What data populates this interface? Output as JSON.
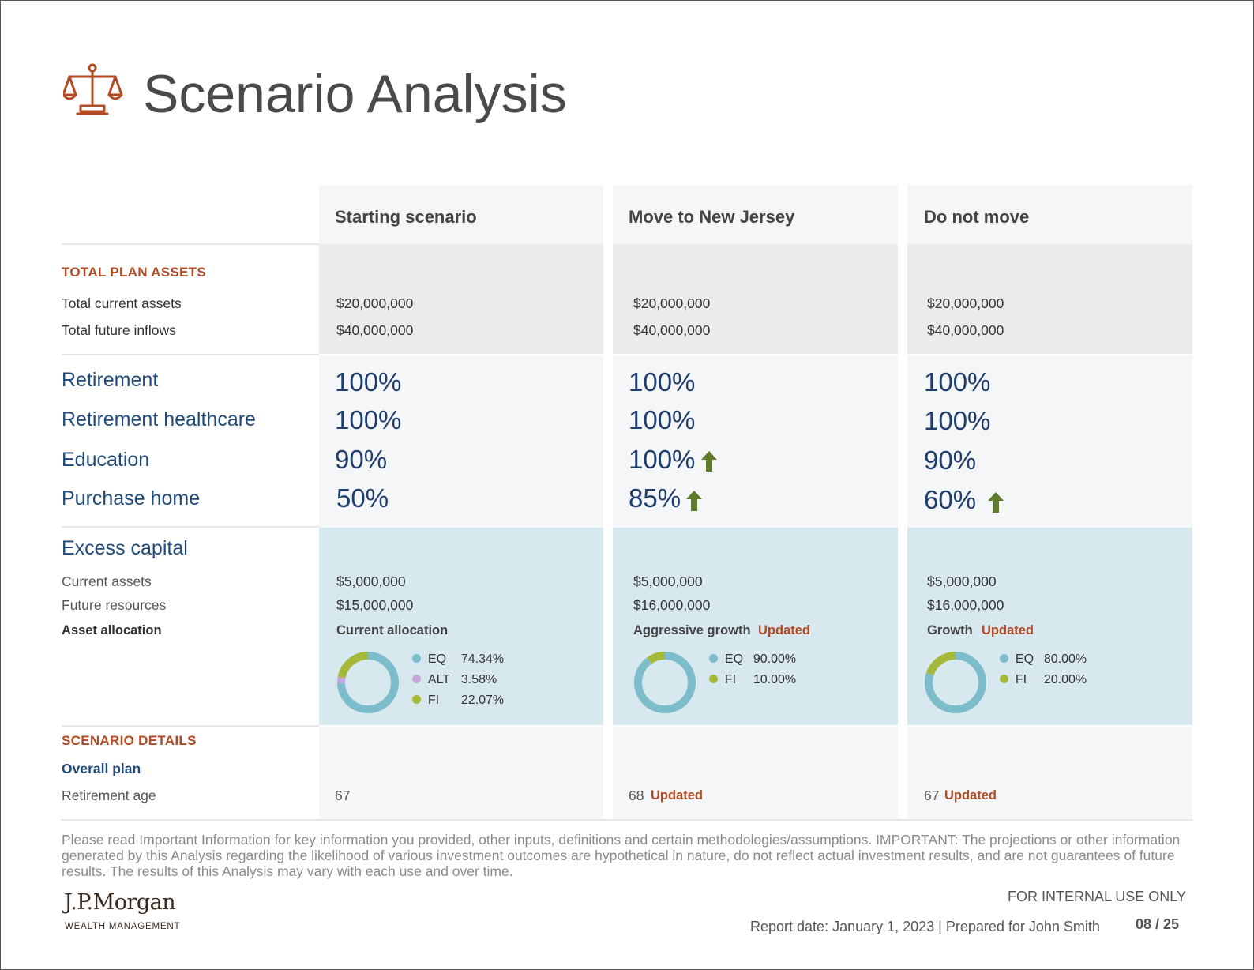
{
  "title": "Scenario Analysis",
  "columns": [
    {
      "title": "Starting scenario"
    },
    {
      "title": "Move to New Jersey"
    },
    {
      "title": "Do not move"
    }
  ],
  "plan_assets": {
    "section": "TOTAL PLAN ASSETS",
    "rows": [
      "Total current assets",
      "Total future inflows"
    ],
    "values": [
      [
        "$20,000,000",
        "$40,000,000"
      ],
      [
        "$20,000,000",
        "$40,000,000"
      ],
      [
        "$20,000,000",
        "$40,000,000"
      ]
    ]
  },
  "goals": {
    "rows": [
      "Retirement",
      "Retirement healthcare",
      "Education",
      "Purchase home"
    ],
    "values": [
      [
        "100%",
        "100%",
        "90%",
        "50%"
      ],
      [
        "100%",
        "100%",
        "100%",
        "85%"
      ],
      [
        "100%",
        "100%",
        "90%",
        "60%"
      ]
    ],
    "improved": [
      [
        false,
        false,
        false,
        false
      ],
      [
        false,
        false,
        true,
        true
      ],
      [
        false,
        false,
        false,
        true
      ]
    ]
  },
  "excess_capital": {
    "section": "Excess capital",
    "rows": [
      "Current assets",
      "Future resources",
      "Asset allocation"
    ],
    "values": [
      [
        "$5,000,000",
        "$15,000,000"
      ],
      [
        "$5,000,000",
        "$16,000,000"
      ],
      [
        "$5,000,000",
        "$16,000,000"
      ]
    ],
    "allocation_names": [
      "Current allocation",
      "Aggressive growth",
      "Growth"
    ],
    "allocation_updated": [
      "",
      "Updated",
      "Updated"
    ],
    "allocations": [
      [
        {
          "label": "EQ",
          "value": 74.34,
          "pct": "74.34%",
          "color": "#7dbcca"
        },
        {
          "label": "ALT",
          "value": 3.58,
          "pct": "3.58%",
          "color": "#c6a6dc"
        },
        {
          "label": "FI",
          "value": 22.07,
          "pct": "22.07%",
          "color": "#a6b83a"
        }
      ],
      [
        {
          "label": "EQ",
          "value": 90.0,
          "pct": "90.00%",
          "color": "#7dbcca"
        },
        {
          "label": "FI",
          "value": 10.0,
          "pct": "10.00%",
          "color": "#a6b83a"
        }
      ],
      [
        {
          "label": "EQ",
          "value": 80.0,
          "pct": "80.00%",
          "color": "#7dbcca"
        },
        {
          "label": "FI",
          "value": 20.0,
          "pct": "20.00%",
          "color": "#a6b83a"
        }
      ]
    ]
  },
  "details": {
    "section": "SCENARIO DETAILS",
    "subsection": "Overall plan",
    "row": "Retirement age",
    "values": [
      "67",
      "68",
      "67"
    ],
    "updated": [
      "",
      "Updated",
      "Updated"
    ]
  },
  "footer": {
    "note": "Please read Important Information for key information you provided, other inputs, definitions and certain methodologies/assumptions. IMPORTANT: The projections or other information generated by this Analysis regarding the likelihood of various investment outcomes are hypothetical in nature, do not reflect actual investment results, and are not guarantees of future results. The results of this Analysis may vary with each use and over time.",
    "brand": "J.P.Morgan",
    "brand_sub": "WEALTH MANAGEMENT",
    "internal": "FOR INTERNAL USE ONLY",
    "report": "Report date: January 1, 2023 | Prepared for John Smith",
    "page": "08 / 25"
  },
  "colors": {
    "accent": "#b24a23",
    "goal": "#1f4a7a",
    "arrow": "#5e7a2a"
  }
}
